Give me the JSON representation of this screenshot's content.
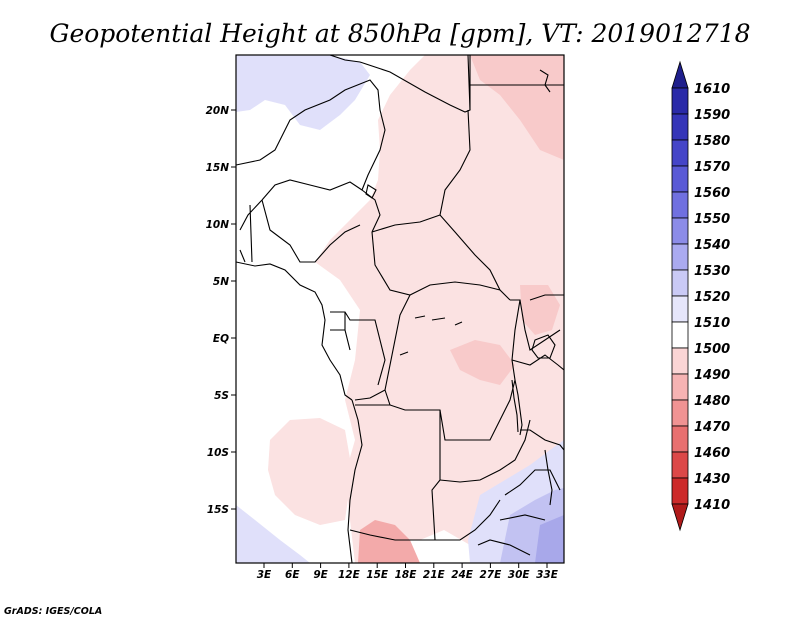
{
  "title": "Geopotential Height at 850hPa [gpm], VT: 2019012718",
  "credit": "GrADS: IGES/COLA",
  "map": {
    "variable": "Geopotential Height",
    "level": "850hPa",
    "units": "gpm",
    "valid_time": "2019012718",
    "lat_labels": [
      "20N",
      "15N",
      "10N",
      "5N",
      "EQ",
      "5S",
      "10S",
      "15S"
    ],
    "lon_labels": [
      "3E",
      "6E",
      "9E",
      "12E",
      "15E",
      "18E",
      "21E",
      "24E",
      "27E",
      "30E",
      "33E"
    ]
  },
  "colorbar": {
    "levels": [
      "1610",
      "1590",
      "1580",
      "1570",
      "1560",
      "1550",
      "1540",
      "1530",
      "1520",
      "1510",
      "1500",
      "1490",
      "1480",
      "1470",
      "1460",
      "1430",
      "1410"
    ],
    "colors": [
      "#1f1f8c",
      "#2a2aa8",
      "#3535b8",
      "#4545c8",
      "#5a5ad6",
      "#7070e0",
      "#8c8ce8",
      "#aaaaf0",
      "#cacaf6",
      "#e6e6fb",
      "#ffffff",
      "#fbd5d5",
      "#f6b3b3",
      "#f09393",
      "#e87070",
      "#dc4848",
      "#cc2a2a",
      "#b01a1a"
    ]
  },
  "fill_colors": {
    "ocean": "#ffffff",
    "pink_light": "#fbe2e2",
    "pink_mid": "#f8caca",
    "pink_strong": "#f3aaaa",
    "blue_light": "#e0e0fa",
    "blue_mid": "#c2c2f2",
    "blue_strong": "#a8a8ea"
  }
}
